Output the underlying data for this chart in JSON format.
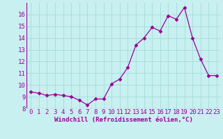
{
  "x": [
    0,
    1,
    2,
    3,
    4,
    5,
    6,
    7,
    8,
    9,
    10,
    11,
    12,
    13,
    14,
    15,
    16,
    17,
    18,
    19,
    20,
    21,
    22,
    23
  ],
  "y": [
    9.4,
    9.3,
    9.1,
    9.2,
    9.1,
    9.0,
    8.7,
    8.3,
    8.8,
    8.8,
    10.1,
    10.5,
    11.5,
    13.4,
    14.0,
    14.9,
    14.6,
    15.9,
    15.6,
    16.6,
    14.0,
    12.2,
    10.8,
    10.8
  ],
  "line_color": "#990099",
  "marker": "D",
  "marker_size": 2.5,
  "bg_color": "#c8f0f0",
  "grid_color": "#aadddd",
  "xlabel": "Windchill (Refroidissement éolien,°C)",
  "xlabel_color": "#990099",
  "xlabel_fontsize": 6.5,
  "tick_color": "#990099",
  "tick_fontsize": 6.5,
  "xlim": [
    -0.5,
    23.5
  ],
  "ylim": [
    8.0,
    17.0
  ],
  "yticks": [
    8,
    9,
    10,
    11,
    12,
    13,
    14,
    15,
    16
  ],
  "xticks": [
    0,
    1,
    2,
    3,
    4,
    5,
    6,
    7,
    8,
    9,
    10,
    11,
    12,
    13,
    14,
    15,
    16,
    17,
    18,
    19,
    20,
    21,
    22,
    23
  ]
}
